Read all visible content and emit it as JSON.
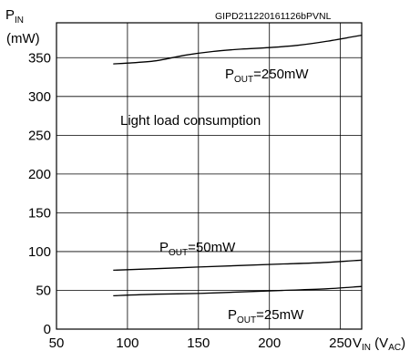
{
  "chart_data": {
    "type": "line",
    "code_label": "GIPD211220161126bPVNL",
    "y_title": {
      "main": "P",
      "sub": "IN"
    },
    "y_unit": "(mW)",
    "x_title": {
      "main": "V",
      "sub": "IN",
      "paren_open": " (V",
      "paren_sub": "AC",
      "paren_close": ")"
    },
    "annotation": "Light load consumption",
    "xlim": [
      50,
      265
    ],
    "ylim": [
      0,
      395
    ],
    "x_ticks": [
      50,
      100,
      150,
      200,
      250
    ],
    "y_ticks": [
      0,
      50,
      100,
      150,
      200,
      250,
      300,
      350
    ],
    "grid": true,
    "series": [
      {
        "label": {
          "main": "P",
          "sub": "OUT",
          "rest": "=250mW"
        },
        "x": [
          90,
          100,
          120,
          140,
          160,
          180,
          200,
          220,
          240,
          265
        ],
        "y": [
          342,
          343,
          346,
          353,
          358,
          361,
          363,
          366,
          371,
          379
        ]
      },
      {
        "label": {
          "main": "P",
          "sub": "OUT",
          "rest": "=50mW"
        },
        "x": [
          90,
          120,
          150,
          180,
          210,
          240,
          265
        ],
        "y": [
          76,
          78,
          80,
          82,
          84,
          86,
          89
        ]
      },
      {
        "label": {
          "main": "P",
          "sub": "OUT",
          "rest": "=25mW"
        },
        "x": [
          90,
          120,
          150,
          180,
          210,
          240,
          265
        ],
        "y": [
          43,
          45,
          46,
          48,
          50,
          52,
          55
        ]
      }
    ]
  }
}
